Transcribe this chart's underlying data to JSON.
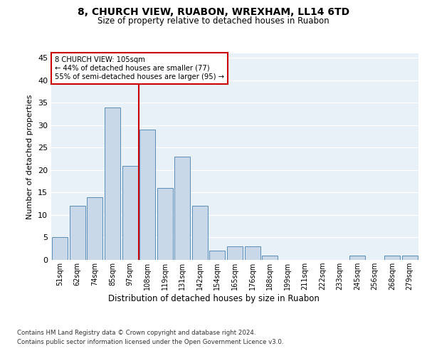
{
  "title1": "8, CHURCH VIEW, RUABON, WREXHAM, LL14 6TD",
  "title2": "Size of property relative to detached houses in Ruabon",
  "xlabel": "Distribution of detached houses by size in Ruabon",
  "ylabel": "Number of detached properties",
  "categories": [
    "51sqm",
    "62sqm",
    "74sqm",
    "85sqm",
    "97sqm",
    "108sqm",
    "119sqm",
    "131sqm",
    "142sqm",
    "154sqm",
    "165sqm",
    "176sqm",
    "188sqm",
    "199sqm",
    "211sqm",
    "222sqm",
    "233sqm",
    "245sqm",
    "256sqm",
    "268sqm",
    "279sqm"
  ],
  "values": [
    5,
    12,
    14,
    34,
    21,
    29,
    16,
    23,
    12,
    2,
    3,
    3,
    1,
    0,
    0,
    0,
    0,
    1,
    0,
    1,
    1
  ],
  "bar_color": "#c8d8e8",
  "bar_edge_color": "#5b8db8",
  "background_color": "#e8f0f8",
  "grid_color": "#ffffff",
  "red_line_x": 4.5,
  "annotation_text_line1": "8 CHURCH VIEW: 105sqm",
  "annotation_text_line2": "← 44% of detached houses are smaller (77)",
  "annotation_text_line3": "55% of semi-detached houses are larger (95) →",
  "annotation_box_color": "#ffffff",
  "annotation_box_edge": "#cc0000",
  "red_line_color": "#cc0000",
  "ylim": [
    0,
    46
  ],
  "yticks": [
    0,
    5,
    10,
    15,
    20,
    25,
    30,
    35,
    40,
    45
  ],
  "footnote1": "Contains HM Land Registry data © Crown copyright and database right 2024.",
  "footnote2": "Contains public sector information licensed under the Open Government Licence v3.0."
}
